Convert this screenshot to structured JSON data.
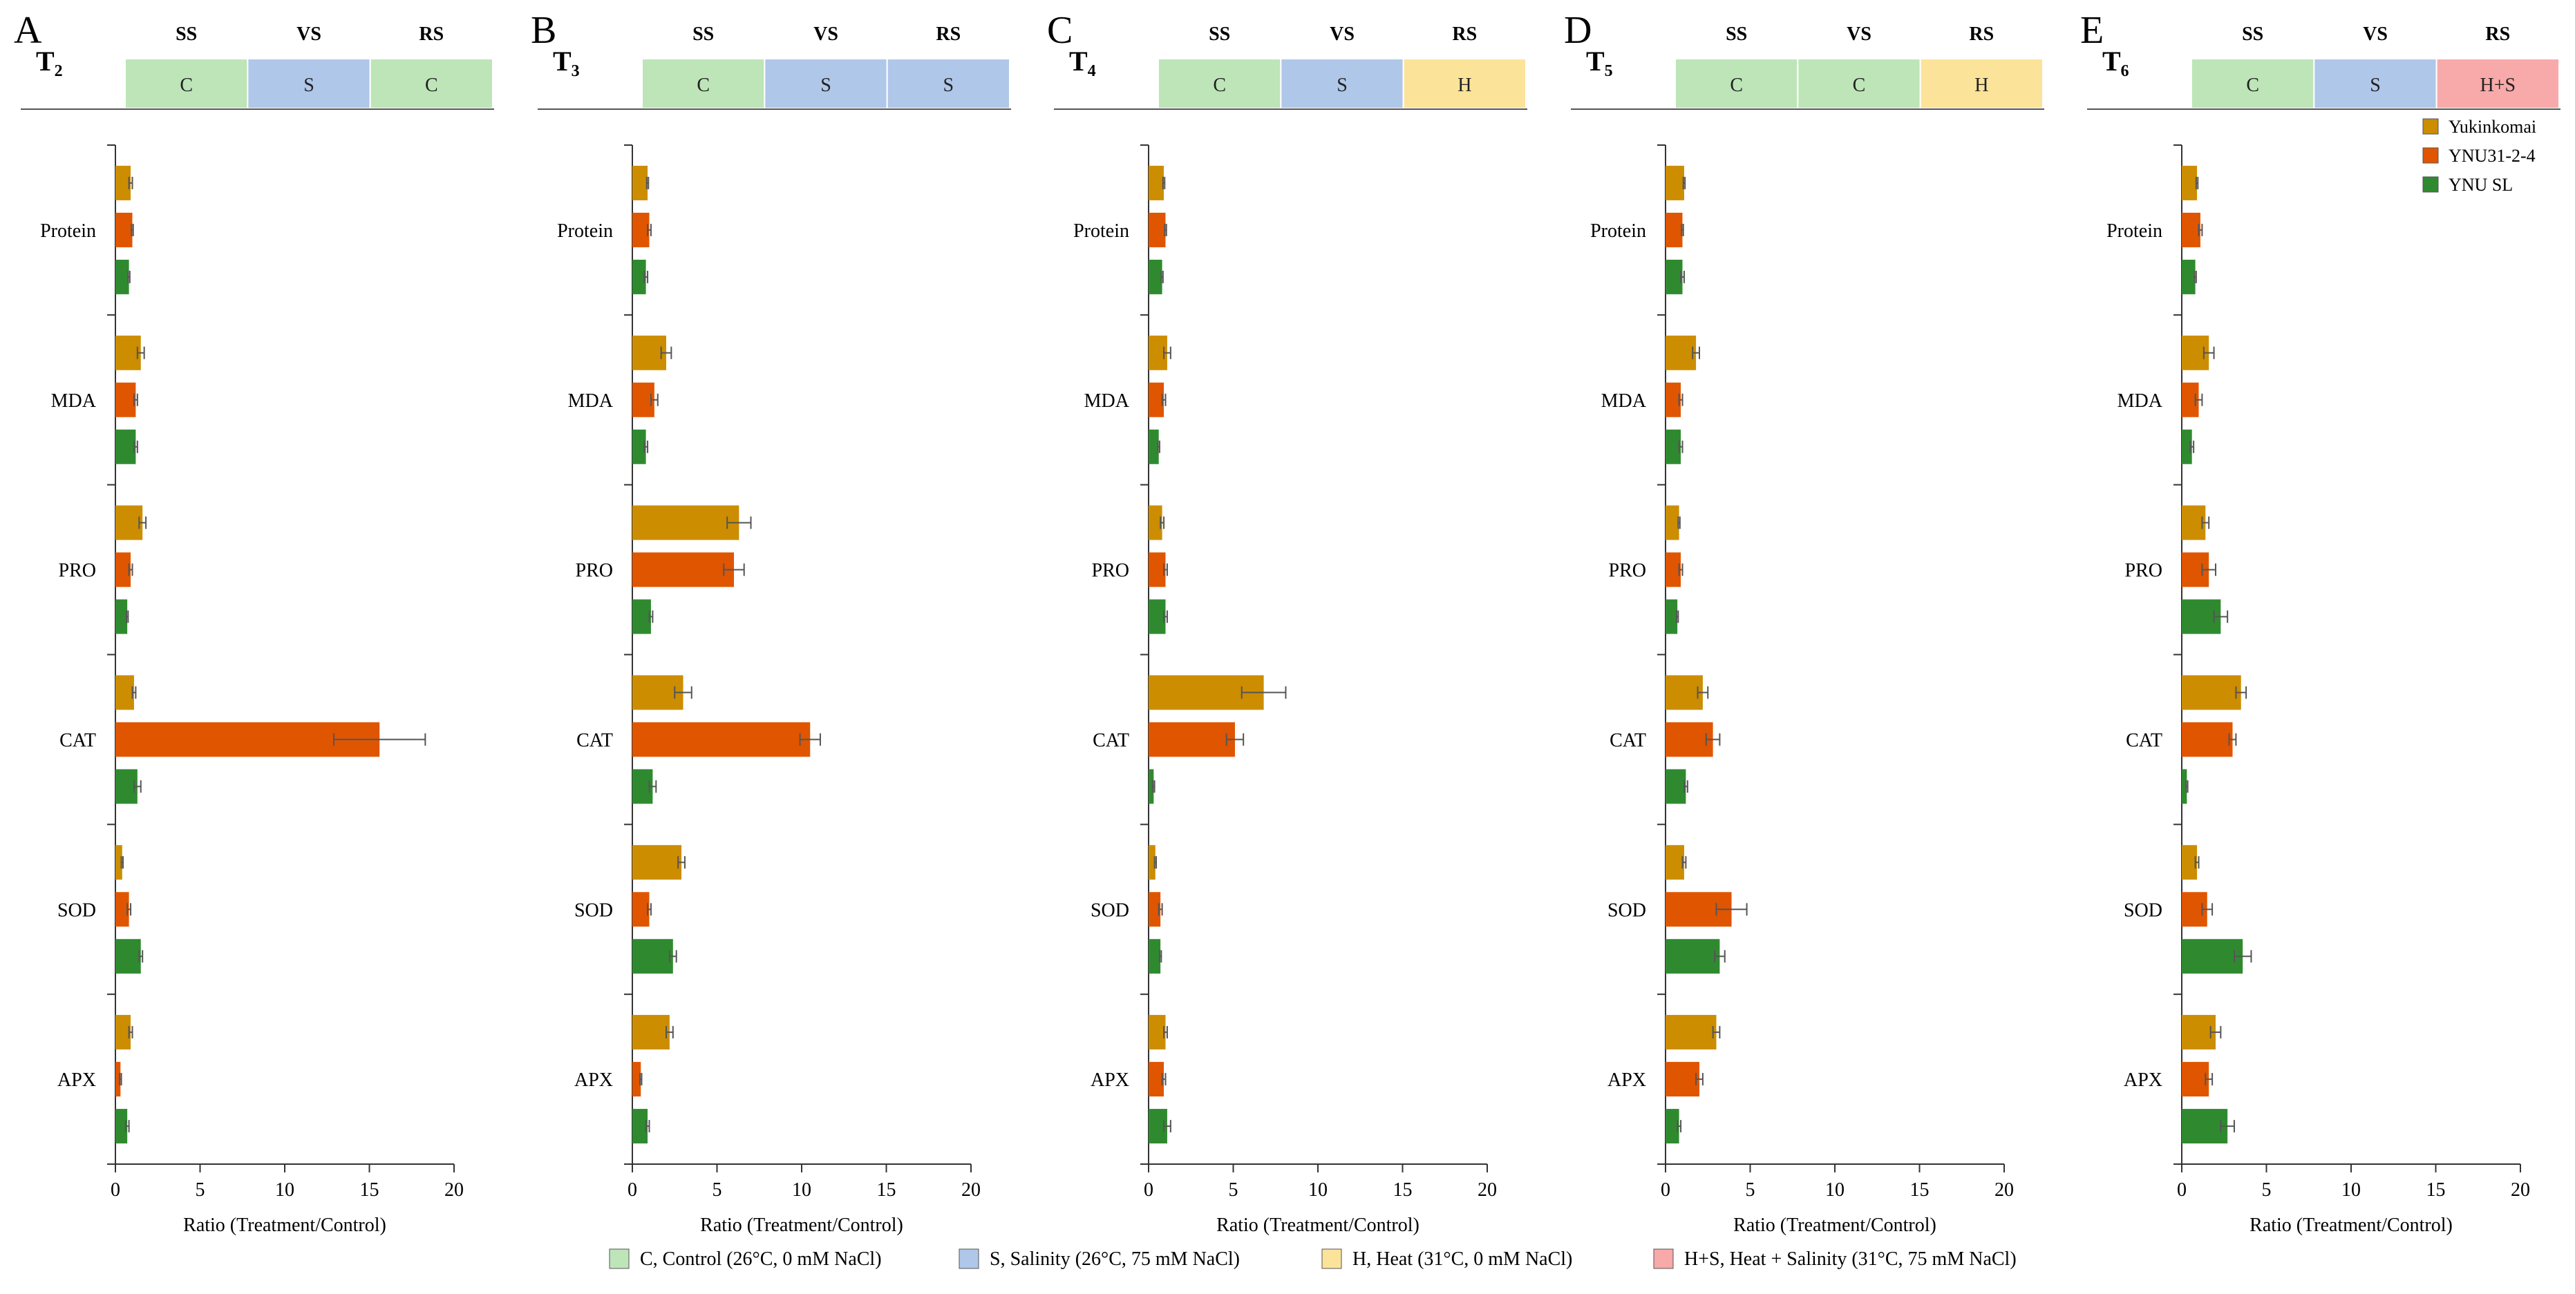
{
  "xlabel": "Ratio (Treatment/Control)",
  "xticks": [
    0,
    5,
    10,
    15,
    20
  ],
  "xlim": [
    0,
    20
  ],
  "categories": [
    "Protein",
    "MDA",
    "PRO",
    "CAT",
    "SOD",
    "APX"
  ],
  "stage_labels": [
    "SS",
    "VS",
    "RS"
  ],
  "series_names": [
    "Yukinkomai",
    "YNU31-2-4",
    "YNU SL"
  ],
  "series_colors": [
    "#cc8d00",
    "#e05500",
    "#2f8a2f"
  ],
  "condition_colors": {
    "C": "#bde5b8",
    "S": "#afc7e8",
    "H": "#fbe39a",
    "H+S": "#f8a9a9"
  },
  "legend": [
    {
      "name": "Yukinkomai"
    },
    {
      "name": "YNU31-2-4"
    },
    {
      "name": "YNU SL"
    }
  ],
  "condition_legend": [
    {
      "code": "C",
      "label": "C, Control (26°C, 0 mM NaCl)"
    },
    {
      "code": "S",
      "label": "S, Salinity (26°C, 75 mM NaCl)"
    },
    {
      "code": "H",
      "label": "H, Heat (31°C, 0 mM NaCl)"
    },
    {
      "code": "H+S",
      "label": "H+S, Heat + Salinity (31°C, 75 mM NaCl)"
    }
  ],
  "chart_data": [
    {
      "type": "bar",
      "orientation": "horizontal",
      "panel": "A",
      "title": "T₂",
      "conditions": [
        {
          "label": "C",
          "span": 1
        },
        {
          "label": "S",
          "span": 1
        },
        {
          "label": "C",
          "span": 1
        }
      ],
      "xlabel": "Ratio (Treatment/Control)",
      "xlim": [
        0,
        20
      ],
      "categories": [
        "Protein",
        "MDA",
        "PRO",
        "CAT",
        "SOD",
        "APX"
      ],
      "series": [
        {
          "name": "Yukinkomai",
          "values": [
            0.9,
            1.5,
            1.6,
            1.1,
            0.4,
            0.9
          ],
          "errors": [
            0.1,
            0.2,
            0.2,
            0.1,
            0.05,
            0.1
          ]
        },
        {
          "name": "YNU31-2-4",
          "values": [
            1.0,
            1.2,
            0.9,
            15.6,
            0.8,
            0.3
          ],
          "errors": [
            0.05,
            0.1,
            0.1,
            2.7,
            0.1,
            0.05
          ]
        },
        {
          "name": "YNU SL",
          "values": [
            0.8,
            1.2,
            0.7,
            1.3,
            1.5,
            0.7
          ],
          "errors": [
            0.05,
            0.1,
            0.05,
            0.2,
            0.1,
            0.1
          ]
        }
      ]
    },
    {
      "type": "bar",
      "orientation": "horizontal",
      "panel": "B",
      "title": "T₃",
      "conditions": [
        {
          "label": "C",
          "span": 1
        },
        {
          "label": "S",
          "span": 1
        },
        {
          "label": "S",
          "span": 1
        }
      ],
      "xlabel": "Ratio (Treatment/Control)",
      "xlim": [
        0,
        20
      ],
      "categories": [
        "Protein",
        "MDA",
        "PRO",
        "CAT",
        "SOD",
        "APX"
      ],
      "series": [
        {
          "name": "Yukinkomai",
          "values": [
            0.9,
            2.0,
            6.3,
            3.0,
            2.9,
            2.2
          ],
          "errors": [
            0.05,
            0.3,
            0.7,
            0.5,
            0.2,
            0.2
          ]
        },
        {
          "name": "YNU31-2-4",
          "values": [
            1.0,
            1.3,
            6.0,
            10.5,
            1.0,
            0.5
          ],
          "errors": [
            0.1,
            0.2,
            0.6,
            0.6,
            0.1,
            0.05
          ]
        },
        {
          "name": "YNU SL",
          "values": [
            0.8,
            0.8,
            1.1,
            1.2,
            2.4,
            0.9
          ],
          "errors": [
            0.1,
            0.1,
            0.1,
            0.2,
            0.2,
            0.1
          ]
        }
      ]
    },
    {
      "type": "bar",
      "orientation": "horizontal",
      "panel": "C",
      "title": "T₄",
      "conditions": [
        {
          "label": "C",
          "span": 1
        },
        {
          "label": "S",
          "span": 1
        },
        {
          "label": "H",
          "span": 1
        }
      ],
      "xlabel": "Ratio (Treatment/Control)",
      "xlim": [
        0,
        20
      ],
      "categories": [
        "Protein",
        "MDA",
        "PRO",
        "CAT",
        "SOD",
        "APX"
      ],
      "series": [
        {
          "name": "Yukinkomai",
          "values": [
            0.9,
            1.1,
            0.8,
            6.8,
            0.4,
            1.0
          ],
          "errors": [
            0.05,
            0.2,
            0.1,
            1.3,
            0.05,
            0.1
          ]
        },
        {
          "name": "YNU31-2-4",
          "values": [
            1.0,
            0.9,
            1.0,
            5.1,
            0.7,
            0.9
          ],
          "errors": [
            0.05,
            0.1,
            0.1,
            0.5,
            0.1,
            0.1
          ]
        },
        {
          "name": "YNU SL",
          "values": [
            0.8,
            0.6,
            1.0,
            0.3,
            0.7,
            1.1
          ],
          "errors": [
            0.05,
            0.05,
            0.1,
            0.05,
            0.05,
            0.2
          ]
        }
      ]
    },
    {
      "type": "bar",
      "orientation": "horizontal",
      "panel": "D",
      "title": "T₅",
      "conditions": [
        {
          "label": "C",
          "span": 1
        },
        {
          "label": "C",
          "span": 1
        },
        {
          "label": "H",
          "span": 1
        }
      ],
      "xlabel": "Ratio (Treatment/Control)",
      "xlim": [
        0,
        20
      ],
      "categories": [
        "Protein",
        "MDA",
        "PRO",
        "CAT",
        "SOD",
        "APX"
      ],
      "series": [
        {
          "name": "Yukinkomai",
          "values": [
            1.1,
            1.8,
            0.8,
            2.2,
            1.1,
            3.0
          ],
          "errors": [
            0.05,
            0.2,
            0.05,
            0.3,
            0.1,
            0.2
          ]
        },
        {
          "name": "YNU31-2-4",
          "values": [
            1.0,
            0.9,
            0.9,
            2.8,
            3.9,
            2.0
          ],
          "errors": [
            0.05,
            0.1,
            0.1,
            0.4,
            0.9,
            0.2
          ]
        },
        {
          "name": "YNU SL",
          "values": [
            1.0,
            0.9,
            0.7,
            1.2,
            3.2,
            0.8
          ],
          "errors": [
            0.1,
            0.1,
            0.05,
            0.1,
            0.3,
            0.1
          ]
        }
      ]
    },
    {
      "type": "bar",
      "orientation": "horizontal",
      "panel": "E",
      "title": "T₆",
      "conditions": [
        {
          "label": "C",
          "span": 1
        },
        {
          "label": "S",
          "span": 1
        },
        {
          "label": "H+S",
          "span": 1
        }
      ],
      "xlabel": "Ratio (Treatment/Control)",
      "xlim": [
        0,
        20
      ],
      "categories": [
        "Protein",
        "MDA",
        "PRO",
        "CAT",
        "SOD",
        "APX"
      ],
      "series": [
        {
          "name": "Yukinkomai",
          "values": [
            0.9,
            1.6,
            1.4,
            3.5,
            0.9,
            2.0
          ],
          "errors": [
            0.05,
            0.3,
            0.2,
            0.3,
            0.1,
            0.3
          ]
        },
        {
          "name": "YNU31-2-4",
          "values": [
            1.1,
            1.0,
            1.6,
            3.0,
            1.5,
            1.6
          ],
          "errors": [
            0.1,
            0.2,
            0.4,
            0.2,
            0.3,
            0.2
          ]
        },
        {
          "name": "YNU SL",
          "values": [
            0.8,
            0.6,
            2.3,
            0.3,
            3.6,
            2.7
          ],
          "errors": [
            0.05,
            0.1,
            0.4,
            0.05,
            0.5,
            0.4
          ]
        }
      ]
    }
  ]
}
